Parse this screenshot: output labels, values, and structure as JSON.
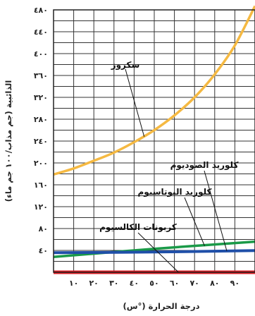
{
  "chart_data": {
    "type": "line",
    "xlabel": "درجة الحرارة (°س)",
    "ylabel": "الذائبية (جم مذاب/١٠٠ جم ماء)",
    "xlim": [
      0,
      100
    ],
    "ylim": [
      0,
      480
    ],
    "grid": true,
    "xticks": [
      {
        "value": 10,
        "label": "١٠"
      },
      {
        "value": 20,
        "label": "٢٠"
      },
      {
        "value": 30,
        "label": "٣٠"
      },
      {
        "value": 40,
        "label": "٤٠"
      },
      {
        "value": 50,
        "label": "٥٠"
      },
      {
        "value": 60,
        "label": "٦٠"
      },
      {
        "value": 70,
        "label": "٧٠"
      },
      {
        "value": 80,
        "label": "٨٠"
      },
      {
        "value": 90,
        "label": "٩٠"
      }
    ],
    "yticks": [
      {
        "value": 40,
        "label": "٤٠"
      },
      {
        "value": 80,
        "label": "٨٠"
      },
      {
        "value": 120,
        "label": "١٢٠"
      },
      {
        "value": 160,
        "label": "١٦٠"
      },
      {
        "value": 200,
        "label": "٢٠٠"
      },
      {
        "value": 240,
        "label": "٢٤٠"
      },
      {
        "value": 280,
        "label": "٢٨٠"
      },
      {
        "value": 320,
        "label": "٣٢٠"
      },
      {
        "value": 360,
        "label": "٣٦٠"
      },
      {
        "value": 400,
        "label": "٤٠٠"
      },
      {
        "value": 440,
        "label": "٤٤٠"
      },
      {
        "value": 480,
        "label": "٤٨٠"
      }
    ],
    "series": [
      {
        "name": "سكروز",
        "color": "#f5b942",
        "points": [
          [
            0,
            179
          ],
          [
            10,
            190
          ],
          [
            20,
            204
          ],
          [
            30,
            219
          ],
          [
            40,
            238
          ],
          [
            50,
            260
          ],
          [
            60,
            287
          ],
          [
            70,
            320
          ],
          [
            80,
            362
          ],
          [
            90,
            415
          ],
          [
            100,
            487
          ]
        ]
      },
      {
        "name": "كلوريد الصوديوم",
        "color": "#1f4fa8",
        "points": [
          [
            0,
            35.7
          ],
          [
            50,
            37
          ],
          [
            100,
            39.8
          ]
        ]
      },
      {
        "name": "كلوريد البوتاسيوم",
        "color": "#1a9a48",
        "points": [
          [
            0,
            28
          ],
          [
            50,
            43
          ],
          [
            100,
            56
          ]
        ]
      },
      {
        "name": "كربونات الكالسيوم",
        "color": "#d91c24",
        "points": [
          [
            0,
            0.01
          ],
          [
            100,
            0.01
          ]
        ]
      }
    ]
  }
}
